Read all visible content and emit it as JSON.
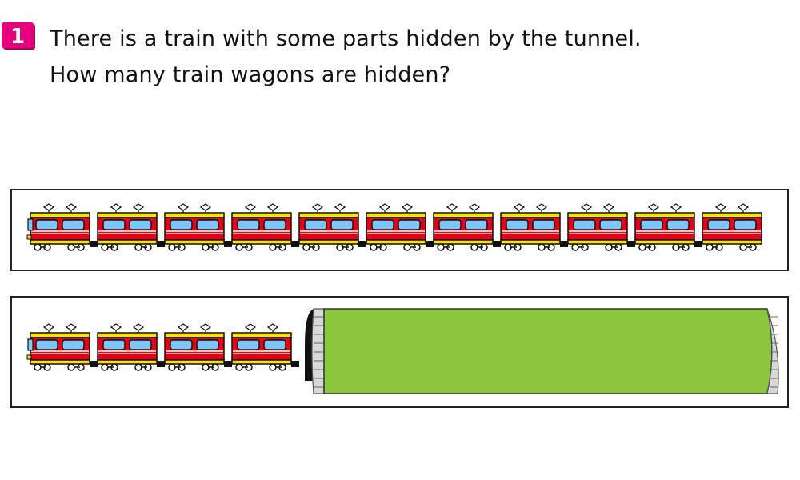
{
  "problem": {
    "number": "1",
    "line1": "There is a train with some parts hidden by the tunnel.",
    "line2": "How many train wagons are hidden?"
  },
  "full_train": {
    "wagon_count": 11
  },
  "hidden_train": {
    "visible_wagon_count": 4
  },
  "colors": {
    "badge": "#e6007e",
    "wagon_body": "#e60012",
    "wagon_roof": "#ffe100",
    "window": "#7fc6ff",
    "tunnel": "#8cc63f",
    "outline": "#111111"
  }
}
